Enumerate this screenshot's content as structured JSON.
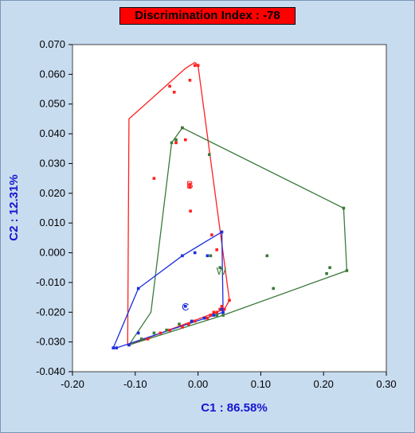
{
  "chart_data": {
    "type": "scatter",
    "title": "Discrimination Index : -78",
    "xlabel": "C1 : 86.58%",
    "ylabel": "C2 : 12.31%",
    "xlim": [
      -0.2,
      0.3
    ],
    "ylim": [
      -0.04,
      0.07
    ],
    "xticks": [
      "-0.20",
      "-0.10",
      "0.00",
      "0.10",
      "0.20",
      "0.30"
    ],
    "yticks": [
      "0.070",
      "0.060",
      "0.050",
      "0.040",
      "0.030",
      "0.020",
      "0.010",
      "0.000",
      "-0.010",
      "-0.020",
      "-0.030",
      "-0.040"
    ],
    "xtick_values": [
      -0.2,
      -0.1,
      0.0,
      0.1,
      0.2,
      0.3
    ],
    "ytick_values": [
      0.07,
      0.06,
      0.05,
      0.04,
      0.03,
      0.02,
      0.01,
      0.0,
      -0.01,
      -0.02,
      -0.03,
      -0.04
    ],
    "grid": false,
    "series": [
      {
        "name": "B",
        "color": "#ff2020",
        "label_pos": [
          -0.013,
          0.023
        ],
        "hull": [
          [
            -0.11,
            0.045
          ],
          [
            -0.02,
            0.062
          ],
          [
            -0.005,
            0.064
          ],
          [
            0.0,
            0.063
          ],
          [
            0.05,
            -0.016
          ],
          [
            0.042,
            -0.019
          ],
          [
            -0.11,
            -0.031
          ],
          [
            -0.112,
            -0.031
          ]
        ],
        "points": [
          [
            -0.045,
            0.056
          ],
          [
            -0.038,
            0.054
          ],
          [
            -0.013,
            0.058
          ],
          [
            -0.005,
            0.063
          ],
          [
            0.0,
            0.063
          ],
          [
            -0.025,
            0.042
          ],
          [
            -0.035,
            0.037
          ],
          [
            -0.02,
            0.038
          ],
          [
            -0.07,
            0.025
          ],
          [
            -0.012,
            0.014
          ],
          [
            -0.013,
            0.022
          ],
          [
            -0.013,
            0.023
          ],
          [
            0.03,
            0.001
          ],
          [
            0.022,
            0.006
          ],
          [
            0.038,
            -0.018
          ],
          [
            0.042,
            -0.019
          ],
          [
            0.035,
            -0.019
          ],
          [
            0.03,
            -0.02
          ],
          [
            0.025,
            -0.02
          ],
          [
            0.02,
            -0.021
          ],
          [
            0.015,
            -0.022
          ],
          [
            0.01,
            -0.022
          ],
          [
            -0.005,
            -0.023
          ],
          [
            -0.015,
            -0.024
          ],
          [
            -0.025,
            -0.025
          ],
          [
            -0.045,
            -0.026
          ],
          [
            -0.06,
            -0.027
          ],
          [
            -0.08,
            -0.029
          ],
          [
            -0.11,
            -0.031
          ],
          [
            0.05,
            -0.016
          ]
        ]
      },
      {
        "name": "W",
        "color": "#3a7a3a",
        "label_pos": [
          0.037,
          -0.006
        ],
        "hull": [
          [
            -0.042,
            0.037
          ],
          [
            -0.025,
            0.042
          ],
          [
            0.232,
            0.015
          ],
          [
            0.237,
            -0.006
          ],
          [
            0.04,
            -0.021
          ],
          [
            -0.11,
            -0.031
          ],
          [
            -0.075,
            -0.02
          ]
        ],
        "points": [
          [
            -0.042,
            0.037
          ],
          [
            -0.025,
            0.042
          ],
          [
            -0.035,
            0.038
          ],
          [
            0.232,
            0.015
          ],
          [
            0.237,
            -0.006
          ],
          [
            0.21,
            -0.005
          ],
          [
            0.205,
            -0.007
          ],
          [
            0.11,
            -0.001
          ],
          [
            0.12,
            -0.012
          ],
          [
            0.02,
            -0.001
          ],
          [
            0.035,
            -0.005
          ],
          [
            0.04,
            -0.021
          ],
          [
            0.03,
            -0.021
          ],
          [
            0.01,
            -0.022
          ],
          [
            -0.01,
            -0.023
          ],
          [
            -0.03,
            -0.024
          ],
          [
            -0.05,
            -0.026
          ],
          [
            -0.07,
            -0.027
          ],
          [
            -0.09,
            -0.029
          ],
          [
            0.018,
            0.033
          ]
        ]
      },
      {
        "name": "C",
        "color": "#1a2de0",
        "label_pos": [
          -0.02,
          -0.018
        ],
        "hull": [
          [
            -0.095,
            -0.012
          ],
          [
            -0.025,
            -0.001
          ],
          [
            0.038,
            0.007
          ],
          [
            0.04,
            -0.02
          ],
          [
            -0.13,
            -0.032
          ],
          [
            -0.135,
            -0.032
          ]
        ],
        "points": [
          [
            -0.095,
            -0.012
          ],
          [
            -0.025,
            -0.001
          ],
          [
            -0.005,
            0.0
          ],
          [
            0.015,
            -0.001
          ],
          [
            0.038,
            0.007
          ],
          [
            0.04,
            -0.02
          ],
          [
            0.038,
            -0.019
          ],
          [
            0.025,
            -0.021
          ],
          [
            0.01,
            -0.022
          ],
          [
            -0.01,
            -0.023
          ],
          [
            -0.02,
            -0.018
          ],
          [
            -0.095,
            -0.027
          ],
          [
            -0.13,
            -0.032
          ],
          [
            -0.135,
            -0.032
          ],
          [
            -0.11,
            -0.031
          ]
        ]
      }
    ]
  }
}
